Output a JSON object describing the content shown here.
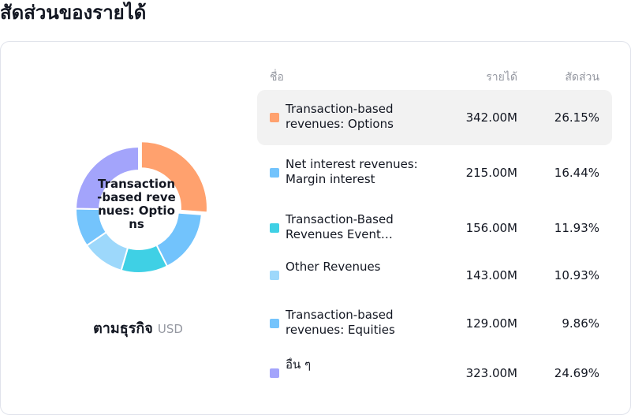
{
  "page": {
    "title": "สัดส่วนของรายได้"
  },
  "chart": {
    "center_label": "Transaction-based revenues: Options",
    "caption": "ตามธุรกิจ",
    "unit": "USD"
  },
  "table": {
    "col_name": "ชื่อ",
    "col_revenue": "รายได้",
    "col_share": "สัดส่วน"
  },
  "chart_data": {
    "type": "pie",
    "donut": true,
    "unit": "USD",
    "categories": [
      "Transaction-based revenues: Options",
      "Net interest revenues: Margin interest",
      "Transaction-Based Revenues Event…",
      "Other Revenues",
      "Transaction-based revenues: Equities",
      "อื่น ๆ"
    ],
    "values": [
      342.0,
      215.0,
      156.0,
      143.0,
      129.0,
      323.0
    ],
    "value_labels": [
      "342.00M",
      "215.00M",
      "156.00M",
      "143.00M",
      "129.00M",
      "323.00M"
    ],
    "shares": [
      "26.15%",
      "16.44%",
      "11.93%",
      "10.93%",
      "9.86%",
      "24.69%"
    ],
    "colors": [
      "#ffa16e",
      "#72c3fc",
      "#3fd0e5",
      "#9dd8fb",
      "#74c4fc",
      "#a3a4fb"
    ],
    "highlighted_index": 0
  }
}
